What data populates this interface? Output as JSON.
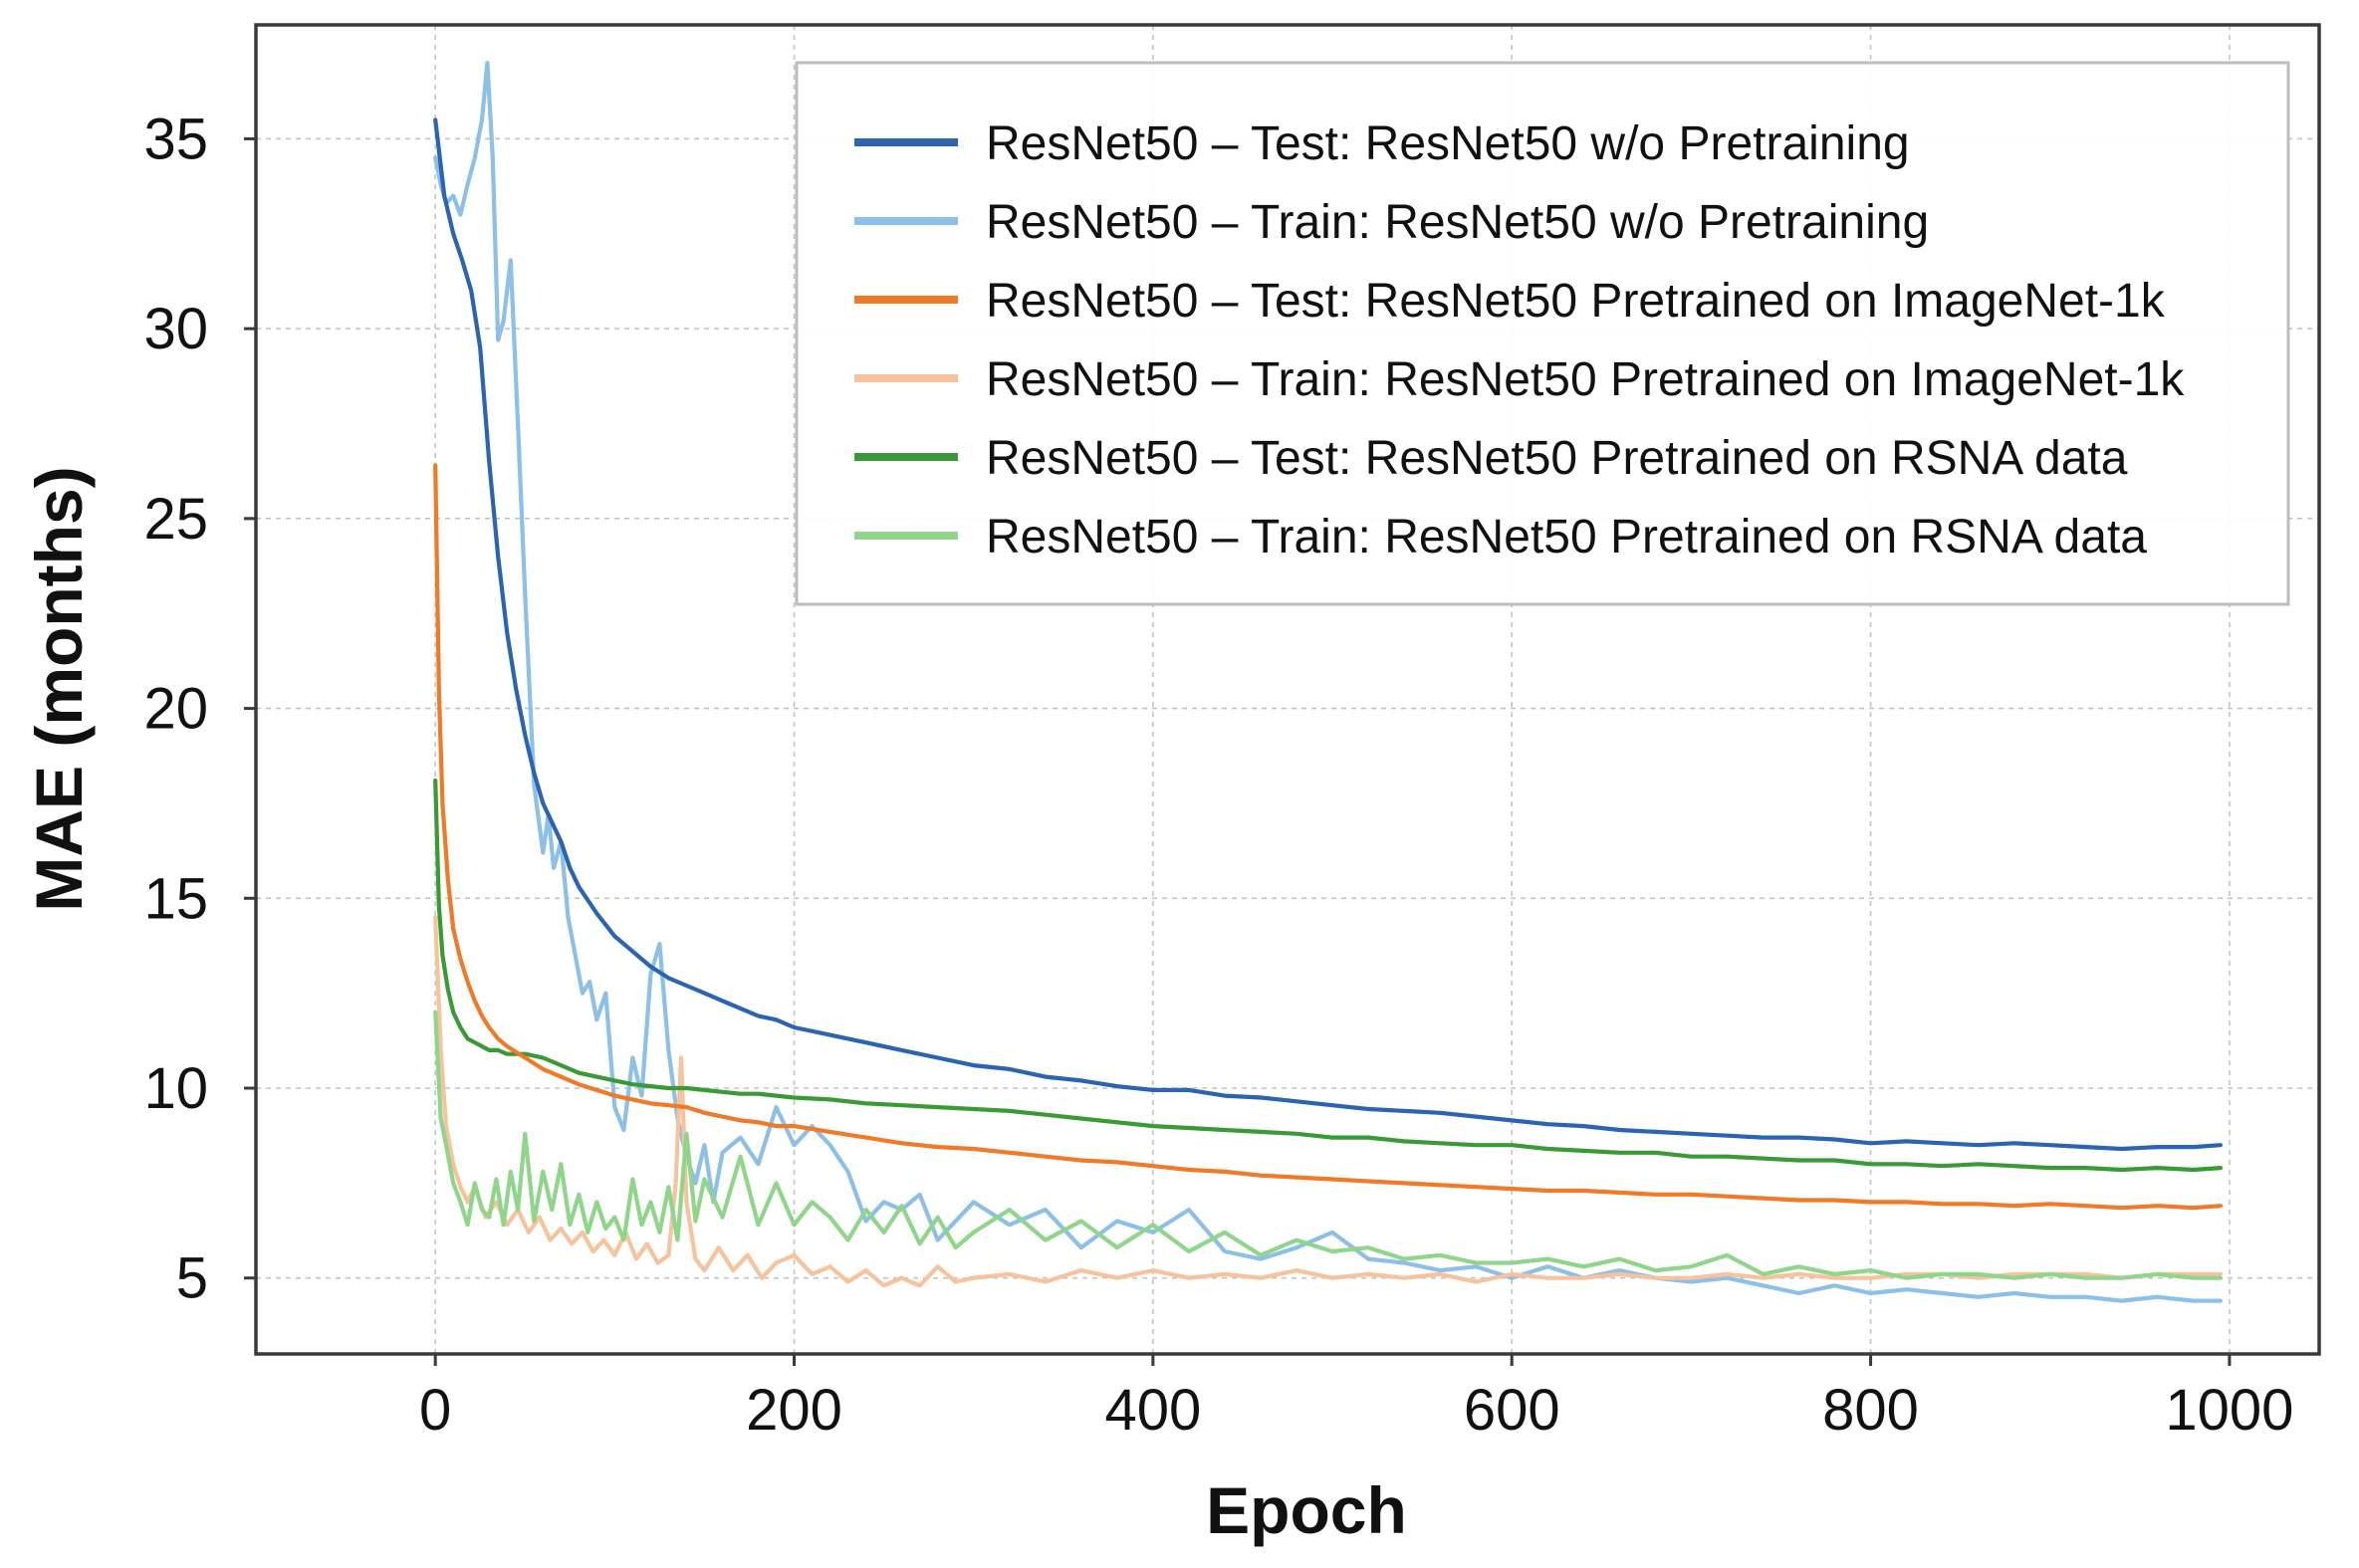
{
  "chart_data": {
    "type": "line",
    "title": "",
    "xlabel": "Epoch",
    "ylabel": "MAE (months)",
    "xlim": [
      -100,
      1050
    ],
    "ylim": [
      3,
      38
    ],
    "xticks": [
      0,
      200,
      400,
      600,
      800,
      1000
    ],
    "yticks": [
      5,
      10,
      15,
      20,
      25,
      30,
      35
    ],
    "grid": true,
    "legend_position": "top-right",
    "series": [
      {
        "name": "ResNet50 – Test: ResNet50 w/o Pretraining",
        "color": "#2b64b2",
        "x": [
          0,
          5,
          10,
          15,
          20,
          25,
          30,
          35,
          40,
          45,
          50,
          55,
          60,
          65,
          70,
          75,
          80,
          90,
          100,
          110,
          120,
          130,
          140,
          150,
          160,
          170,
          180,
          190,
          200,
          220,
          240,
          260,
          280,
          300,
          320,
          340,
          360,
          380,
          400,
          420,
          440,
          460,
          480,
          500,
          520,
          540,
          560,
          580,
          600,
          620,
          640,
          660,
          680,
          700,
          720,
          740,
          760,
          780,
          800,
          820,
          840,
          860,
          880,
          900,
          920,
          940,
          960,
          980,
          995
        ],
        "y": [
          35.5,
          33.5,
          32.5,
          31.8,
          31.0,
          29.5,
          26.5,
          24.0,
          22.0,
          20.5,
          19.3,
          18.3,
          17.5,
          17.0,
          16.5,
          15.8,
          15.3,
          14.6,
          14.0,
          13.6,
          13.2,
          12.9,
          12.7,
          12.5,
          12.3,
          12.1,
          11.9,
          11.8,
          11.6,
          11.4,
          11.2,
          11.0,
          10.8,
          10.6,
          10.5,
          10.3,
          10.2,
          10.05,
          9.95,
          9.95,
          9.8,
          9.75,
          9.65,
          9.55,
          9.45,
          9.4,
          9.35,
          9.25,
          9.15,
          9.05,
          9.0,
          8.9,
          8.85,
          8.8,
          8.75,
          8.7,
          8.7,
          8.65,
          8.55,
          8.6,
          8.55,
          8.5,
          8.55,
          8.5,
          8.45,
          8.4,
          8.45,
          8.45,
          8.5
        ]
      },
      {
        "name": "ResNet50 – Train: ResNet50 w/o Pretraining",
        "color": "#8dc0e8",
        "x": [
          0,
          3,
          6,
          10,
          14,
          18,
          22,
          26,
          29,
          32,
          35,
          38,
          42,
          46,
          50,
          55,
          60,
          63,
          66,
          70,
          74,
          78,
          82,
          86,
          90,
          95,
          100,
          105,
          110,
          115,
          120,
          125,
          130,
          135,
          140,
          145,
          150,
          155,
          160,
          170,
          180,
          190,
          200,
          210,
          220,
          230,
          240,
          250,
          260,
          270,
          280,
          300,
          320,
          340,
          360,
          380,
          400,
          420,
          440,
          460,
          480,
          500,
          520,
          540,
          560,
          580,
          600,
          620,
          640,
          660,
          680,
          700,
          720,
          740,
          760,
          780,
          800,
          820,
          840,
          860,
          880,
          900,
          920,
          940,
          960,
          980,
          995
        ],
        "y": [
          34.5,
          33.8,
          33.3,
          33.5,
          33.0,
          33.8,
          34.5,
          35.5,
          37.0,
          34.5,
          29.7,
          30.2,
          31.8,
          27.5,
          23.0,
          18.0,
          16.2,
          17.2,
          15.8,
          16.5,
          14.5,
          13.5,
          12.5,
          12.8,
          11.8,
          12.5,
          9.5,
          8.9,
          10.8,
          9.8,
          13.0,
          13.8,
          11.0,
          9.2,
          8.2,
          7.5,
          8.5,
          7.0,
          8.3,
          8.7,
          8.0,
          9.5,
          8.5,
          9.0,
          8.5,
          7.8,
          6.5,
          7.0,
          6.8,
          7.2,
          6.0,
          7.0,
          6.4,
          6.8,
          5.8,
          6.5,
          6.2,
          6.8,
          5.7,
          5.5,
          5.8,
          6.2,
          5.5,
          5.4,
          5.2,
          5.3,
          5.0,
          5.3,
          5.0,
          5.2,
          5.0,
          4.9,
          5.0,
          4.8,
          4.6,
          4.8,
          4.6,
          4.7,
          4.6,
          4.5,
          4.6,
          4.5,
          4.5,
          4.4,
          4.5,
          4.4,
          4.4
        ]
      },
      {
        "name": "ResNet50 – Test: ResNet50 Pretrained on ImageNet-1k",
        "color": "#f07a25",
        "x": [
          0,
          2,
          4,
          7,
          10,
          14,
          18,
          22,
          26,
          30,
          35,
          40,
          50,
          60,
          70,
          80,
          90,
          100,
          110,
          120,
          130,
          140,
          150,
          160,
          170,
          180,
          190,
          200,
          220,
          240,
          260,
          280,
          300,
          320,
          340,
          360,
          380,
          400,
          420,
          440,
          460,
          480,
          500,
          520,
          540,
          560,
          580,
          600,
          620,
          640,
          660,
          680,
          700,
          720,
          740,
          760,
          780,
          800,
          820,
          840,
          860,
          880,
          900,
          920,
          940,
          960,
          980,
          995
        ],
        "y": [
          26.4,
          20.5,
          17.5,
          15.5,
          14.2,
          13.4,
          12.8,
          12.3,
          11.9,
          11.6,
          11.3,
          11.1,
          10.8,
          10.5,
          10.3,
          10.1,
          9.95,
          9.8,
          9.7,
          9.6,
          9.55,
          9.5,
          9.35,
          9.25,
          9.15,
          9.1,
          9.0,
          9.0,
          8.85,
          8.7,
          8.55,
          8.45,
          8.4,
          8.3,
          8.2,
          8.1,
          8.05,
          7.95,
          7.85,
          7.8,
          7.7,
          7.65,
          7.6,
          7.55,
          7.5,
          7.45,
          7.4,
          7.35,
          7.3,
          7.3,
          7.25,
          7.2,
          7.2,
          7.15,
          7.1,
          7.05,
          7.05,
          7.0,
          7.0,
          6.95,
          6.95,
          6.9,
          6.95,
          6.9,
          6.85,
          6.9,
          6.85,
          6.9
        ]
      },
      {
        "name": "ResNet50 – Train: ResNet50 Pretrained on ImageNet-1k",
        "color": "#f7c39c",
        "x": [
          0,
          3,
          6,
          10,
          14,
          18,
          22,
          28,
          34,
          40,
          46,
          52,
          58,
          64,
          70,
          76,
          82,
          88,
          94,
          100,
          106,
          112,
          118,
          124,
          130,
          134,
          137,
          140,
          145,
          150,
          158,
          166,
          174,
          182,
          190,
          200,
          210,
          220,
          230,
          240,
          250,
          260,
          270,
          280,
          290,
          300,
          320,
          340,
          360,
          380,
          400,
          420,
          440,
          460,
          480,
          500,
          520,
          540,
          560,
          580,
          600,
          620,
          640,
          660,
          680,
          700,
          720,
          740,
          760,
          780,
          800,
          820,
          840,
          860,
          880,
          900,
          920,
          940,
          960,
          980,
          995
        ],
        "y": [
          14.5,
          11.0,
          9.0,
          8.0,
          7.4,
          7.0,
          7.4,
          6.6,
          7.0,
          6.4,
          6.8,
          6.2,
          6.6,
          6.0,
          6.3,
          5.9,
          6.2,
          5.7,
          6.0,
          5.6,
          6.2,
          5.5,
          5.9,
          5.4,
          5.6,
          7.5,
          10.8,
          7.0,
          5.5,
          5.2,
          5.8,
          5.2,
          5.6,
          5.0,
          5.4,
          5.6,
          5.1,
          5.3,
          4.9,
          5.2,
          4.8,
          5.0,
          4.8,
          5.3,
          4.9,
          5.0,
          5.1,
          4.9,
          5.2,
          5.0,
          5.2,
          5.0,
          5.1,
          5.0,
          5.2,
          5.0,
          5.1,
          5.0,
          5.1,
          4.9,
          5.1,
          5.0,
          5.0,
          5.1,
          5.0,
          5.0,
          5.1,
          5.0,
          5.1,
          5.0,
          5.0,
          5.1,
          5.1,
          5.0,
          5.1,
          5.1,
          5.1,
          5.0,
          5.1,
          5.1,
          5.1
        ]
      },
      {
        "name": "ResNet50 – Test: ResNet50 Pretrained on RSNA data",
        "color": "#3a9a35",
        "x": [
          0,
          2,
          4,
          7,
          10,
          14,
          18,
          22,
          26,
          30,
          35,
          40,
          50,
          60,
          70,
          80,
          90,
          100,
          110,
          120,
          130,
          140,
          150,
          160,
          170,
          180,
          190,
          200,
          220,
          240,
          260,
          280,
          300,
          320,
          340,
          360,
          380,
          400,
          420,
          440,
          460,
          480,
          500,
          520,
          540,
          560,
          580,
          600,
          620,
          640,
          660,
          680,
          700,
          720,
          740,
          760,
          780,
          800,
          820,
          840,
          860,
          880,
          900,
          920,
          940,
          960,
          980,
          995
        ],
        "y": [
          18.1,
          14.8,
          13.5,
          12.6,
          12.0,
          11.6,
          11.3,
          11.2,
          11.1,
          11.0,
          11.0,
          10.9,
          10.9,
          10.8,
          10.6,
          10.4,
          10.3,
          10.2,
          10.1,
          10.05,
          10.0,
          10.0,
          9.95,
          9.9,
          9.85,
          9.85,
          9.8,
          9.75,
          9.7,
          9.6,
          9.55,
          9.5,
          9.45,
          9.4,
          9.3,
          9.2,
          9.1,
          9.0,
          8.95,
          8.9,
          8.85,
          8.8,
          8.7,
          8.7,
          8.6,
          8.55,
          8.5,
          8.5,
          8.4,
          8.35,
          8.3,
          8.3,
          8.2,
          8.2,
          8.15,
          8.1,
          8.1,
          8.0,
          8.0,
          7.95,
          8.0,
          7.95,
          7.9,
          7.9,
          7.85,
          7.9,
          7.85,
          7.9
        ]
      },
      {
        "name": "ResNet50 – Train: ResNet50 Pretrained on RSNA data",
        "color": "#8fd68a",
        "x": [
          0,
          3,
          6,
          10,
          14,
          18,
          22,
          26,
          30,
          34,
          38,
          42,
          46,
          50,
          55,
          60,
          65,
          70,
          75,
          80,
          85,
          90,
          95,
          100,
          105,
          110,
          115,
          120,
          125,
          130,
          135,
          140,
          145,
          150,
          160,
          170,
          180,
          190,
          200,
          210,
          220,
          230,
          240,
          250,
          260,
          270,
          280,
          290,
          300,
          320,
          340,
          360,
          380,
          400,
          420,
          440,
          460,
          480,
          500,
          520,
          540,
          560,
          580,
          600,
          620,
          640,
          660,
          680,
          700,
          720,
          740,
          760,
          780,
          800,
          820,
          840,
          860,
          880,
          900,
          920,
          940,
          960,
          980,
          995
        ],
        "y": [
          12.0,
          9.2,
          8.5,
          7.5,
          7.0,
          6.4,
          7.5,
          6.8,
          6.6,
          7.6,
          6.4,
          7.8,
          6.8,
          8.8,
          6.5,
          7.8,
          6.8,
          8.0,
          6.4,
          7.2,
          6.2,
          7.0,
          6.3,
          6.6,
          6.0,
          7.6,
          6.4,
          7.0,
          6.2,
          7.4,
          6.0,
          8.8,
          6.5,
          7.6,
          6.6,
          8.2,
          6.4,
          7.5,
          6.4,
          7.0,
          6.6,
          6.0,
          6.8,
          6.2,
          6.9,
          5.9,
          6.6,
          5.8,
          6.2,
          6.8,
          6.0,
          6.5,
          5.8,
          6.4,
          5.7,
          6.2,
          5.6,
          6.0,
          5.7,
          5.8,
          5.5,
          5.6,
          5.4,
          5.4,
          5.5,
          5.3,
          5.5,
          5.2,
          5.3,
          5.6,
          5.1,
          5.3,
          5.1,
          5.2,
          5.0,
          5.1,
          5.1,
          5.0,
          5.1,
          5.0,
          5.0,
          5.1,
          5.0,
          5.0
        ]
      }
    ]
  }
}
